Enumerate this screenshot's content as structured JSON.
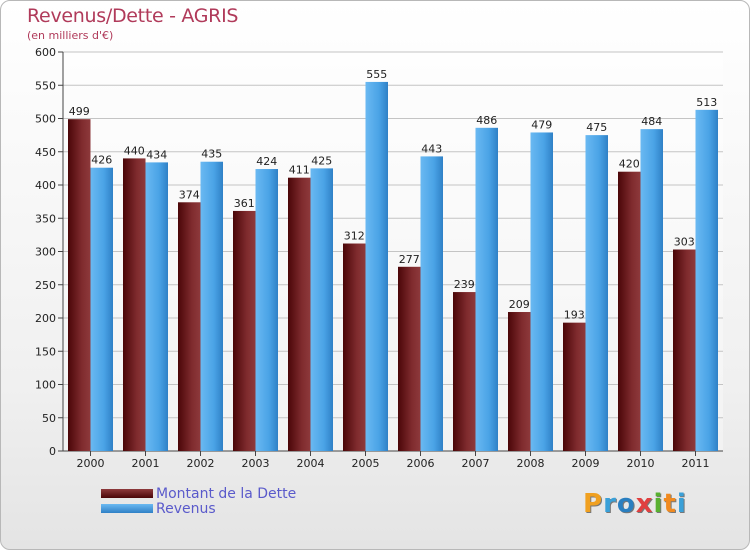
{
  "title": "Revenus/Dette - AGRIS",
  "subtitle": "(en milliers d'€)",
  "legend": {
    "debt_label": "Montant de la Dette",
    "revenue_label": "Revenus"
  },
  "logo_text": "Proxiti",
  "colors": {
    "debt": "#7a1e20",
    "revenue": "#4aa3e6",
    "title": "#b03a5a"
  },
  "chart_data": {
    "type": "bar",
    "title": "Revenus/Dette - AGRIS",
    "subtitle": "(en milliers d'€)",
    "categories": [
      "2000",
      "2001",
      "2002",
      "2003",
      "2004",
      "2005",
      "2006",
      "2007",
      "2008",
      "2009",
      "2010",
      "2011"
    ],
    "series": [
      {
        "name": "Montant de la Dette",
        "values": [
          499,
          440,
          374,
          361,
          411,
          312,
          277,
          239,
          209,
          193,
          420,
          303
        ]
      },
      {
        "name": "Revenus",
        "values": [
          426,
          434,
          435,
          424,
          425,
          555,
          443,
          486,
          479,
          475,
          484,
          513
        ]
      }
    ],
    "ylim": [
      0,
      600
    ],
    "yticks": [
      0,
      50,
      100,
      150,
      200,
      250,
      300,
      350,
      400,
      450,
      500,
      550,
      600
    ],
    "grid": true,
    "legend_position": "bottom-left"
  }
}
